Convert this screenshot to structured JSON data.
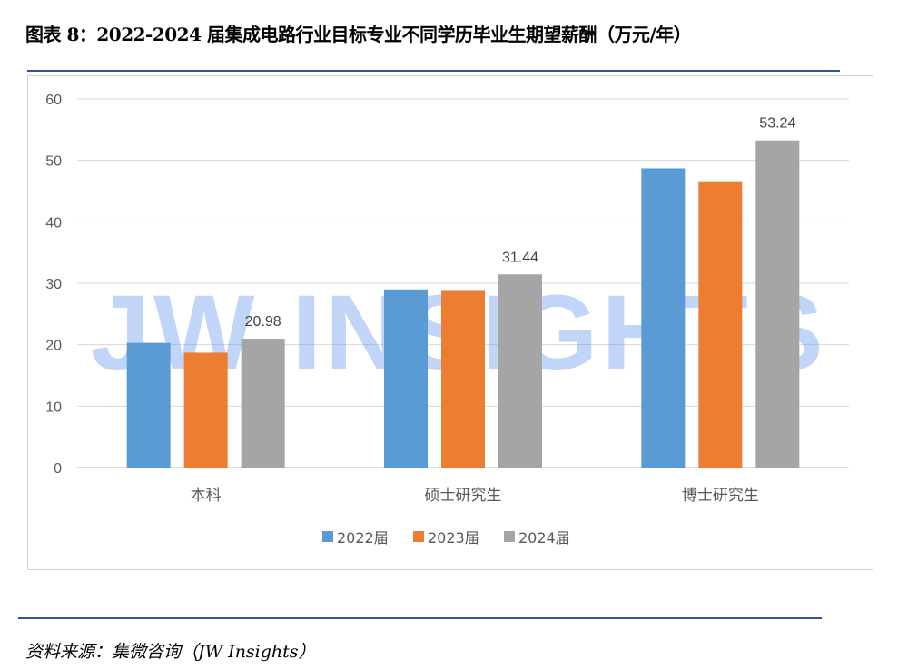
{
  "title": "图表 8：2022-2024 届集成电路行业目标专业不同学历毕业生期望薪酬（万元/年）",
  "source": "资料来源：集微咨询（JW Insights）",
  "watermark": "JW INSIGHTS",
  "chart_data": {
    "type": "bar",
    "title": "2022-2024 届集成电路行业目标专业不同学历毕业生期望薪酬（万元/年）",
    "xlabel": "",
    "ylabel": "",
    "ylim": [
      0,
      60
    ],
    "yticks": [
      0,
      10,
      20,
      30,
      40,
      50,
      60
    ],
    "grid": true,
    "legend": "bottom",
    "categories": [
      "本科",
      "硕士研究生",
      "博士研究生"
    ],
    "series": [
      {
        "name": "2022届",
        "color": "#5b9bd5",
        "values": [
          20.3,
          29.0,
          48.7
        ],
        "labels": [
          null,
          null,
          null
        ]
      },
      {
        "name": "2023届",
        "color": "#ed7d31",
        "values": [
          18.7,
          28.9,
          46.6
        ],
        "labels": [
          null,
          null,
          null
        ]
      },
      {
        "name": "2024届",
        "color": "#a5a5a5",
        "values": [
          20.98,
          31.44,
          53.24
        ],
        "labels": [
          "20.98",
          "31.44",
          "53.24"
        ]
      }
    ]
  }
}
